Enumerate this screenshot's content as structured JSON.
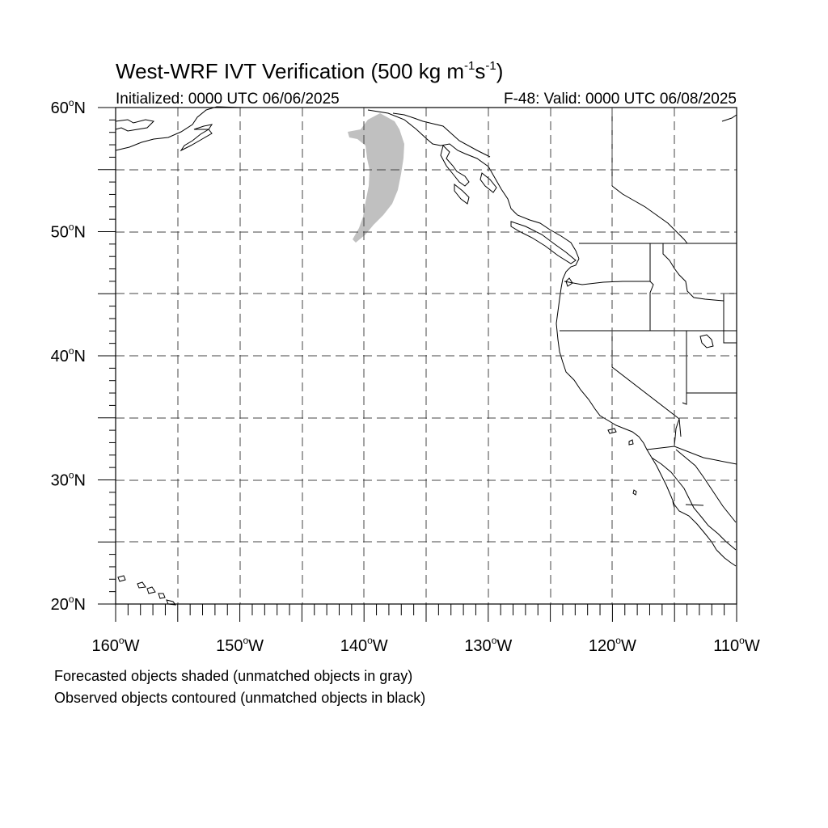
{
  "title": {
    "main": "West-WRF IVT Verification (500 kg m",
    "sup1": "-1",
    "mid": "s",
    "sup2": "-1",
    "close": ")"
  },
  "subtitle": {
    "left": "Initialized: 0000 UTC 06/06/2025",
    "right": "F-48: Valid: 0000 UTC 06/08/2025"
  },
  "axes": {
    "lat_range": [
      20,
      60
    ],
    "lon_range": [
      -160,
      -110
    ],
    "lat_labels": [
      {
        "value": 60,
        "text": "60",
        "suffix": "N"
      },
      {
        "value": 50,
        "text": "50",
        "suffix": "N"
      },
      {
        "value": 40,
        "text": "40",
        "suffix": "N"
      },
      {
        "value": 30,
        "text": "30",
        "suffix": "N"
      },
      {
        "value": 20,
        "text": "20",
        "suffix": "N"
      }
    ],
    "lon_labels": [
      {
        "value": -160,
        "text": "160",
        "suffix": "W"
      },
      {
        "value": -150,
        "text": "150",
        "suffix": "W"
      },
      {
        "value": -140,
        "text": "140",
        "suffix": "W"
      },
      {
        "value": -130,
        "text": "130",
        "suffix": "W"
      },
      {
        "value": -120,
        "text": "120",
        "suffix": "W"
      },
      {
        "value": -110,
        "text": "110",
        "suffix": "W"
      }
    ],
    "grid_spacing_deg": 5,
    "grid": "dashed"
  },
  "legend": {
    "line1": "Forecasted objects shaded (unmatched objects in gray)",
    "line2": "Observed objects contoured (unmatched objects in black)"
  },
  "objects": {
    "forecast_unmatched_color": "#c0c0c0",
    "observed_contour_color": "#000000",
    "forecast_objects": [
      {
        "status": "unmatched",
        "lon_extent": [
          -141,
          -135
        ],
        "lat_extent": [
          49,
          60
        ]
      }
    ],
    "observed_objects": []
  }
}
